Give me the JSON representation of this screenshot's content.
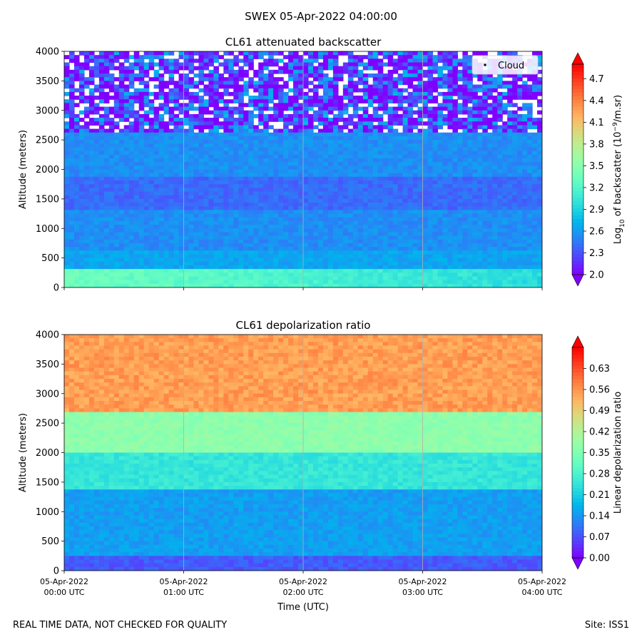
{
  "suptitle": "SWEX 05-Apr-2022 04:00:00",
  "footer_left": "REAL TIME DATA, NOT CHECKED FOR QUALITY",
  "footer_right": "Site: ISS1",
  "chart_data": [
    {
      "type": "heatmap",
      "title": "CL61 attenuated backscatter",
      "ylabel": "Altitude (meters)",
      "xlabel": "",
      "colorbar_label": "Log10 of backscatter (10^-9/m.sr)",
      "colorbar_ticks": [
        "2.0",
        "2.3",
        "2.6",
        "2.9",
        "3.2",
        "3.5",
        "3.8",
        "4.1",
        "4.4",
        "4.7"
      ],
      "colorbar_range": [
        2.0,
        4.9
      ],
      "colormap": "rainbow",
      "ylim": [
        0,
        4000
      ],
      "y_ticks": [
        "0",
        "500",
        "1000",
        "1500",
        "2000",
        "2500",
        "3000",
        "3500",
        "4000"
      ],
      "x_tick_labels_visible": false,
      "legend": {
        "entries": [
          "Cloud"
        ],
        "position": "top-right"
      },
      "grid": "vertical lines at hourly ticks",
      "layers": [
        {
          "alt": [
            0,
            300
          ],
          "value_at_start": 3.35,
          "value_at_end": 2.95
        },
        {
          "alt": [
            300,
            600
          ],
          "value": 2.65
        },
        {
          "alt": [
            600,
            1300
          ],
          "value": 2.55
        },
        {
          "alt": [
            1300,
            1900
          ],
          "value": 2.4
        },
        {
          "alt": [
            1900,
            2650
          ],
          "value": 2.55
        },
        {
          "alt": [
            2650,
            4000
          ],
          "value": 2.2,
          "note": "noisy, sparse"
        }
      ]
    },
    {
      "type": "heatmap",
      "title": "CL61 depolarization ratio",
      "ylabel": "Altitude (meters)",
      "xlabel": "Time (UTC)",
      "colorbar_label": "Linear depolarization ratio",
      "colorbar_ticks": [
        "0.00",
        "0.07",
        "0.14",
        "0.21",
        "0.28",
        "0.35",
        "0.42",
        "0.49",
        "0.56",
        "0.63"
      ],
      "colorbar_range": [
        0.0,
        0.7
      ],
      "colormap": "rainbow",
      "ylim": [
        0,
        4000
      ],
      "y_ticks": [
        "0",
        "500",
        "1000",
        "1500",
        "2000",
        "2500",
        "3000",
        "3500",
        "4000"
      ],
      "x_ticks": [
        {
          "date": "05-Apr-2022",
          "time": "00:00 UTC"
        },
        {
          "date": "05-Apr-2022",
          "time": "01:00 UTC"
        },
        {
          "date": "05-Apr-2022",
          "time": "02:00 UTC"
        },
        {
          "date": "05-Apr-2022",
          "time": "03:00 UTC"
        },
        {
          "date": "05-Apr-2022",
          "time": "04:00 UTC"
        }
      ],
      "grid": "vertical lines at hourly ticks",
      "layers": [
        {
          "alt": [
            0,
            250
          ],
          "value": 0.08
        },
        {
          "alt": [
            250,
            1400
          ],
          "value": 0.15
        },
        {
          "alt": [
            1400,
            2000
          ],
          "value": 0.25
        },
        {
          "alt": [
            2000,
            2700
          ],
          "value": 0.37
        },
        {
          "alt": [
            2700,
            4000
          ],
          "value": 0.55,
          "note": "noisy"
        }
      ]
    }
  ]
}
